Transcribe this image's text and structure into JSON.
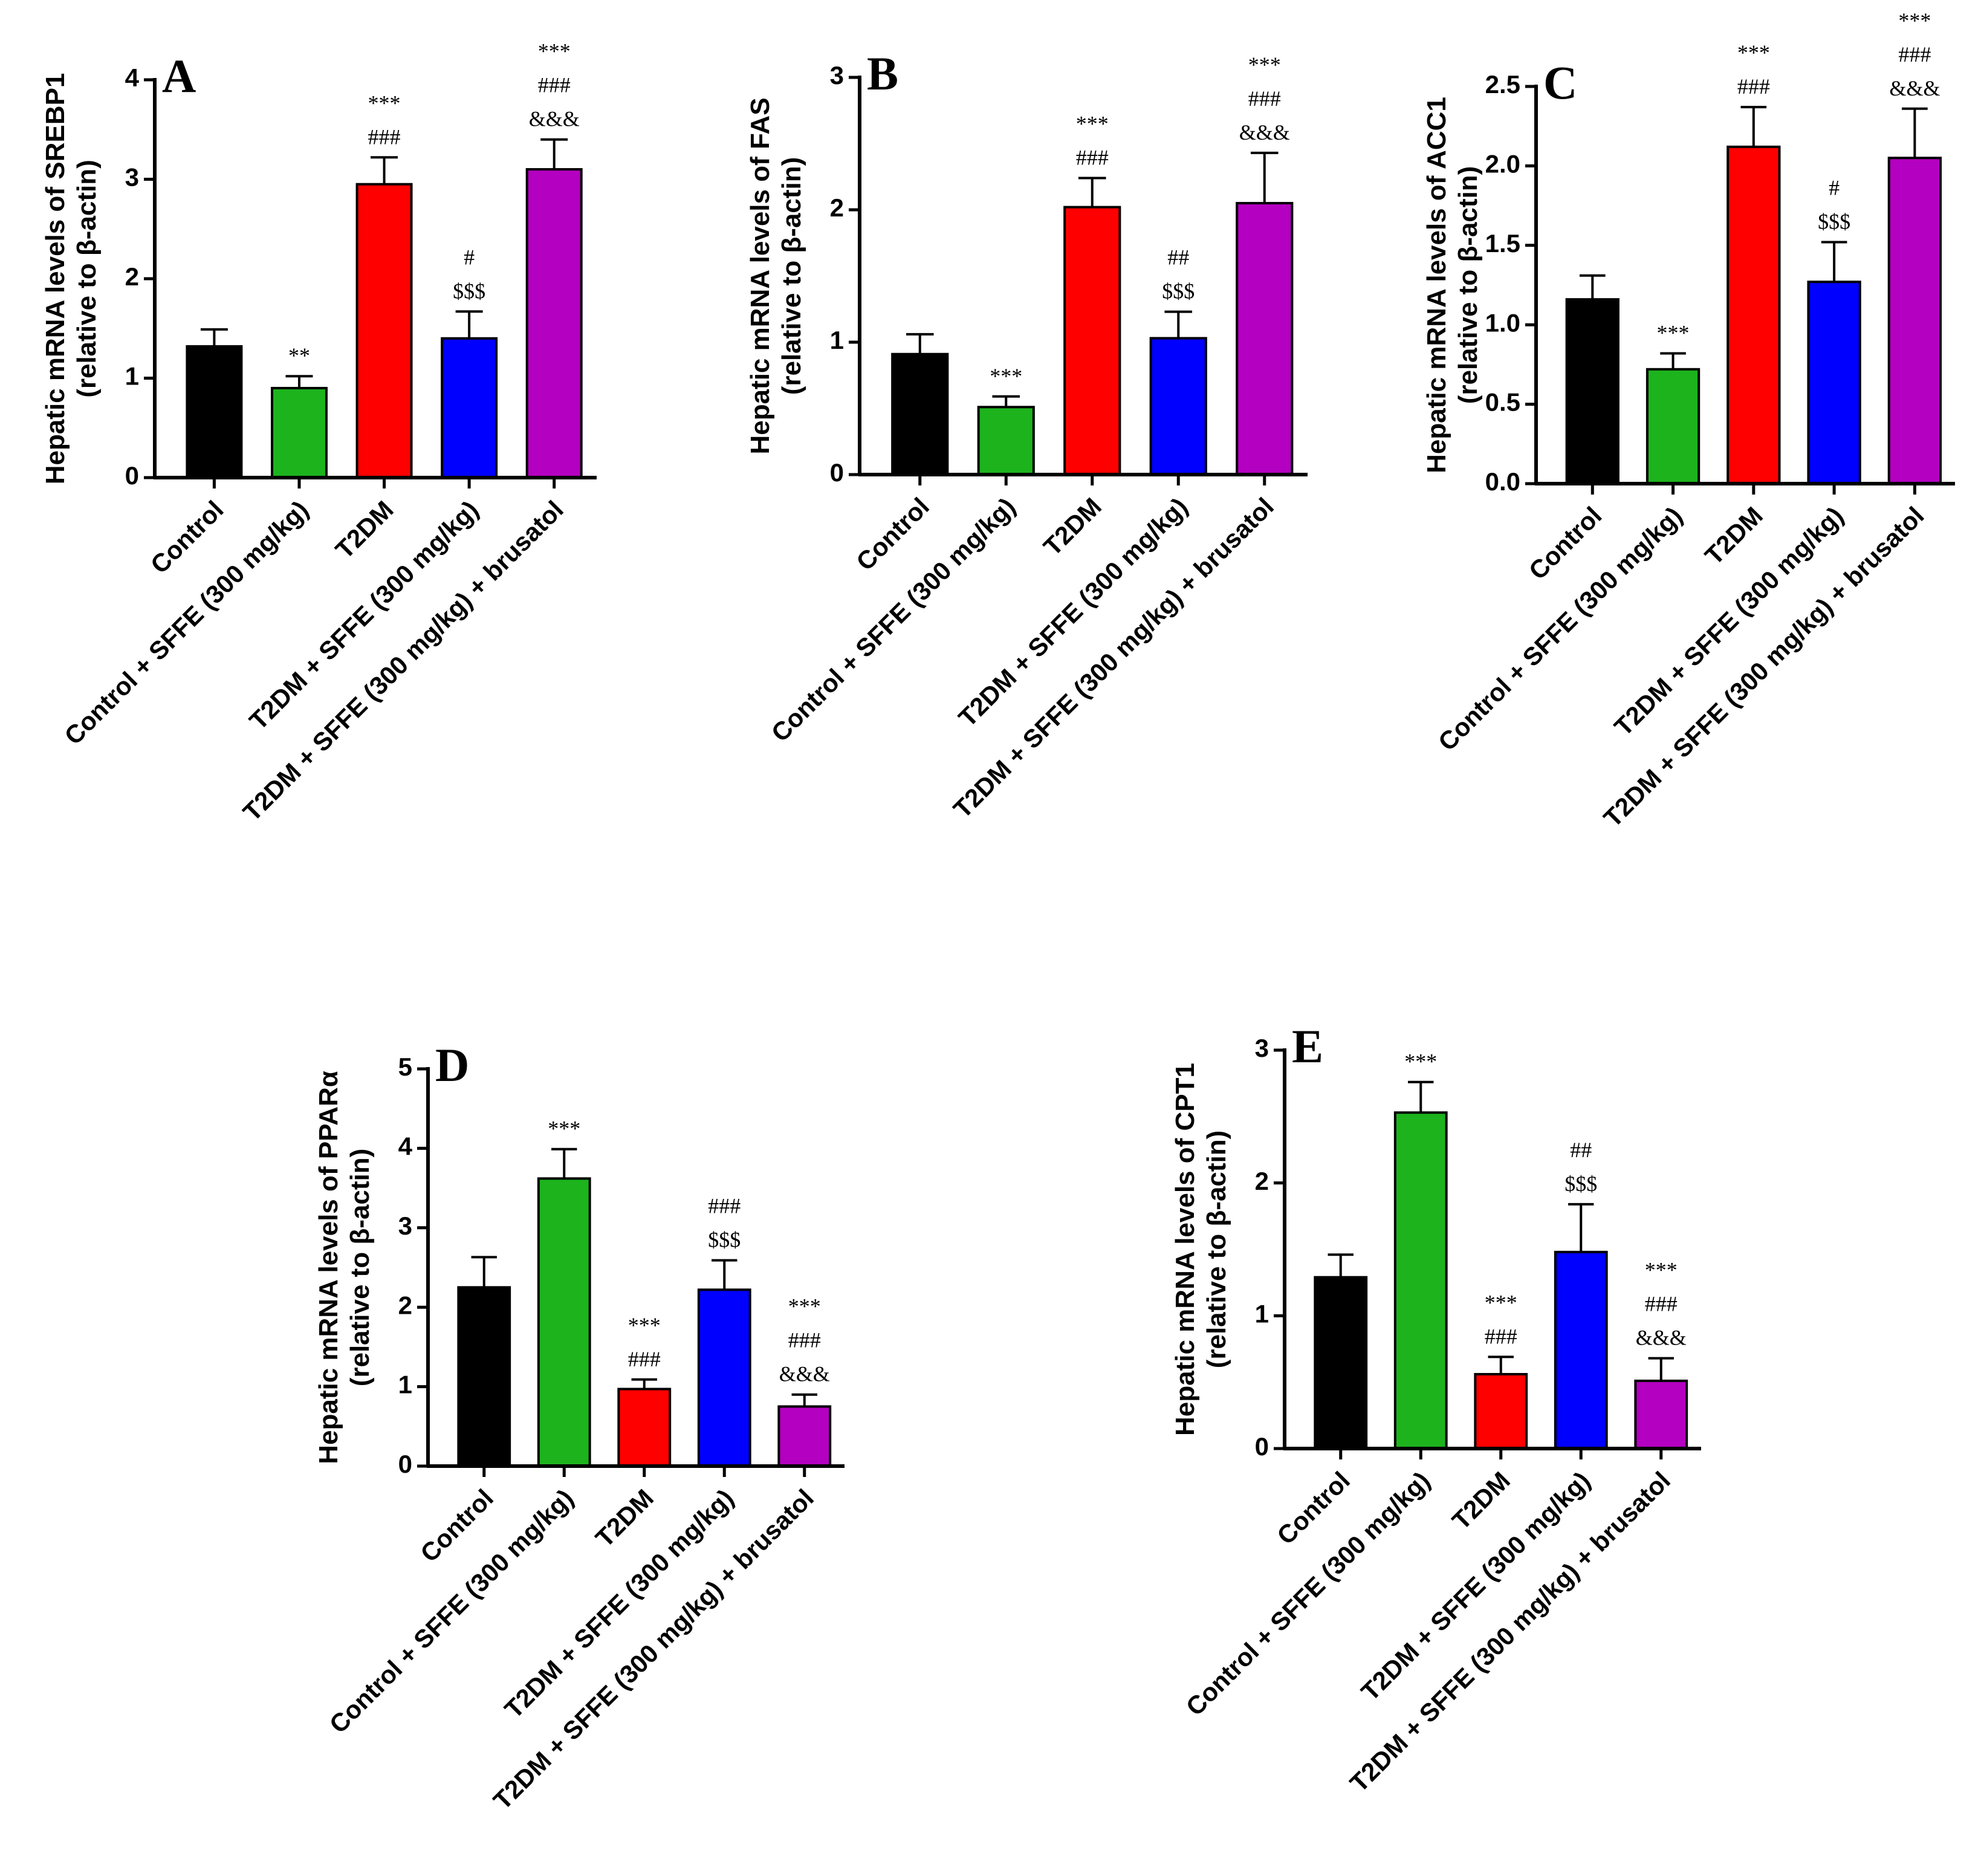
{
  "chart_data": [
    {
      "type": "bar",
      "panel": "A",
      "ylabel": [
        "Hepatic mRNA levels of SREBP1",
        "(relative to β-actin)"
      ],
      "categories": [
        "Control",
        "Control + SFFE (300 mg/kg)",
        "T2DM",
        "T2DM + SFFE (300 mg/kg)",
        "T2DM + SFFE (300 mg/kg) + brusatol"
      ],
      "values": [
        1.32,
        0.9,
        2.95,
        1.4,
        3.1
      ],
      "errors": [
        0.17,
        0.12,
        0.27,
        0.27,
        0.3
      ],
      "colors": [
        "#000000",
        "#1db31d",
        "#ff0000",
        "#0000ff",
        "#b400c0"
      ],
      "annotations": [
        [],
        [
          "**"
        ],
        [
          "***",
          "###"
        ],
        [
          "#",
          "$$$"
        ],
        [
          "***",
          "###",
          "&&&"
        ]
      ],
      "ylim": [
        0,
        4
      ],
      "yticks": [
        0,
        1,
        2,
        3,
        4
      ]
    },
    {
      "type": "bar",
      "panel": "B",
      "ylabel": [
        "Hepatic mRNA levels of FAS",
        "(relative to β-actin)"
      ],
      "categories": [
        "Control",
        "Control + SFFE (300 mg/kg)",
        "T2DM",
        "T2DM + SFFE (300 mg/kg)",
        "T2DM + SFFE (300 mg/kg) + brusatol"
      ],
      "values": [
        0.91,
        0.51,
        2.02,
        1.03,
        2.05
      ],
      "errors": [
        0.15,
        0.08,
        0.22,
        0.2,
        0.38
      ],
      "colors": [
        "#000000",
        "#1db31d",
        "#ff0000",
        "#0000ff",
        "#b400c0"
      ],
      "annotations": [
        [],
        [
          "***"
        ],
        [
          "***",
          "###"
        ],
        [
          "##",
          "$$$"
        ],
        [
          "***",
          "###",
          "&&&"
        ]
      ],
      "ylim": [
        0,
        3
      ],
      "yticks": [
        0,
        1,
        2,
        3
      ]
    },
    {
      "type": "bar",
      "panel": "C",
      "ylabel": [
        "Hepatic mRNA levels of ACC1",
        "(relative to β-actin)"
      ],
      "categories": [
        "Control",
        "Control + SFFE (300 mg/kg)",
        "T2DM",
        "T2DM + SFFE (300 mg/kg)",
        "T2DM + SFFE (300 mg/kg) + brusatol"
      ],
      "values": [
        1.16,
        0.72,
        2.12,
        1.27,
        2.05
      ],
      "errors": [
        0.15,
        0.1,
        0.25,
        0.25,
        0.31
      ],
      "colors": [
        "#000000",
        "#1db31d",
        "#ff0000",
        "#0000ff",
        "#b400c0"
      ],
      "annotations": [
        [],
        [
          "***"
        ],
        [
          "***",
          "###"
        ],
        [
          "#",
          "$$$"
        ],
        [
          "***",
          "###",
          "&&&"
        ]
      ],
      "ylim": [
        0,
        2.5
      ],
      "yticks": [
        {
          "value": 0,
          "label": "0.0"
        },
        0.5,
        {
          "value": 1,
          "label": "1.0"
        },
        1.5,
        {
          "value": 2,
          "label": "2.0"
        },
        2.5
      ]
    },
    {
      "type": "bar",
      "panel": "D",
      "ylabel": [
        "Hepatic mRNA levels of PPARα",
        "(relative to β-actin)"
      ],
      "categories": [
        "Control",
        "Control + SFFE (300 mg/kg)",
        "T2DM",
        "T2DM + SFFE (300 mg/kg)",
        "T2DM + SFFE (300 mg/kg) + brusatol"
      ],
      "values": [
        2.25,
        3.62,
        0.97,
        2.22,
        0.75
      ],
      "errors": [
        0.38,
        0.37,
        0.12,
        0.37,
        0.15
      ],
      "colors": [
        "#000000",
        "#1db31d",
        "#ff0000",
        "#0000ff",
        "#b400c0"
      ],
      "annotations": [
        [],
        [
          "***"
        ],
        [
          "***",
          "###"
        ],
        [
          "###",
          "$$$"
        ],
        [
          "***",
          "###",
          "&&&"
        ]
      ],
      "ylim": [
        0,
        5
      ],
      "yticks": [
        0,
        1,
        2,
        3,
        4,
        5
      ]
    },
    {
      "type": "bar",
      "panel": "E",
      "ylabel": [
        "Hepatic mRNA levels of CPT1",
        "(relative to β-actin)"
      ],
      "categories": [
        "Control",
        "Control + SFFE (300 mg/kg)",
        "T2DM",
        "T2DM + SFFE (300 mg/kg)",
        "T2DM + SFFE (300 mg/kg) + brusatol"
      ],
      "values": [
        1.29,
        2.53,
        0.56,
        1.48,
        0.51
      ],
      "errors": [
        0.17,
        0.23,
        0.13,
        0.36,
        0.17
      ],
      "colors": [
        "#000000",
        "#1db31d",
        "#ff0000",
        "#0000ff",
        "#b400c0"
      ],
      "annotations": [
        [],
        [
          "***"
        ],
        [
          "***",
          "###"
        ],
        [
          "##",
          "$$$"
        ],
        [
          "***",
          "###",
          "&&&"
        ]
      ],
      "ylim": [
        0,
        3
      ],
      "yticks": [
        0,
        1,
        2,
        3
      ]
    }
  ]
}
